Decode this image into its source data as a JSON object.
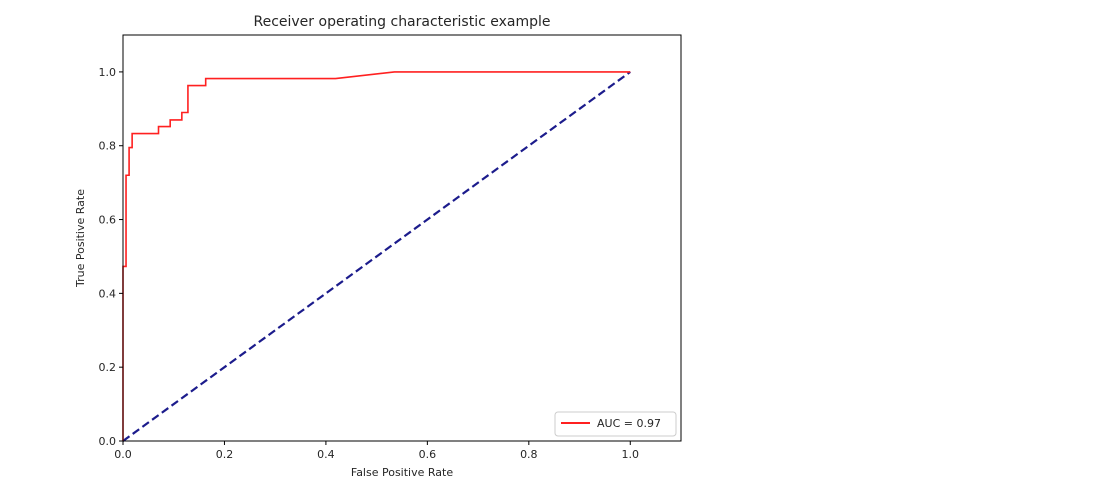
{
  "chart_data": {
    "type": "line",
    "title": "Receiver operating characteristic example",
    "xlabel": "False Positive Rate",
    "ylabel": "True Positive Rate",
    "xlim": [
      0.0,
      1.1
    ],
    "ylim": [
      0.0,
      1.1
    ],
    "xticks": [
      0.0,
      0.2,
      0.4,
      0.6,
      0.8,
      1.0
    ],
    "yticks": [
      0.0,
      0.2,
      0.4,
      0.6,
      0.8,
      1.0
    ],
    "xtick_labels": [
      "0.0",
      "0.2",
      "0.4",
      "0.6",
      "0.8",
      "1.0"
    ],
    "ytick_labels": [
      "0.0",
      "0.2",
      "0.4",
      "0.6",
      "0.8",
      "1.0"
    ],
    "grid": false,
    "legend_position": "bottom-right",
    "series": [
      {
        "name": "AUC = 0.97",
        "color": "#ff2020",
        "style": "solid",
        "x": [
          0.0,
          0.0,
          0.0,
          0.006,
          0.006,
          0.012,
          0.012,
          0.018,
          0.018,
          0.07,
          0.07,
          0.093,
          0.093,
          0.116,
          0.116,
          0.128,
          0.128,
          0.163,
          0.163,
          0.419,
          0.535,
          1.0
        ],
        "y": [
          0.0,
          0.473,
          0.473,
          0.473,
          0.72,
          0.72,
          0.795,
          0.795,
          0.833,
          0.833,
          0.852,
          0.852,
          0.87,
          0.87,
          0.89,
          0.89,
          0.963,
          0.963,
          0.982,
          0.982,
          1.0,
          1.0
        ]
      },
      {
        "name": "",
        "color": "#1c1c8c",
        "style": "dashed",
        "x": [
          0.0,
          1.0
        ],
        "y": [
          0.0,
          1.0
        ]
      }
    ]
  }
}
